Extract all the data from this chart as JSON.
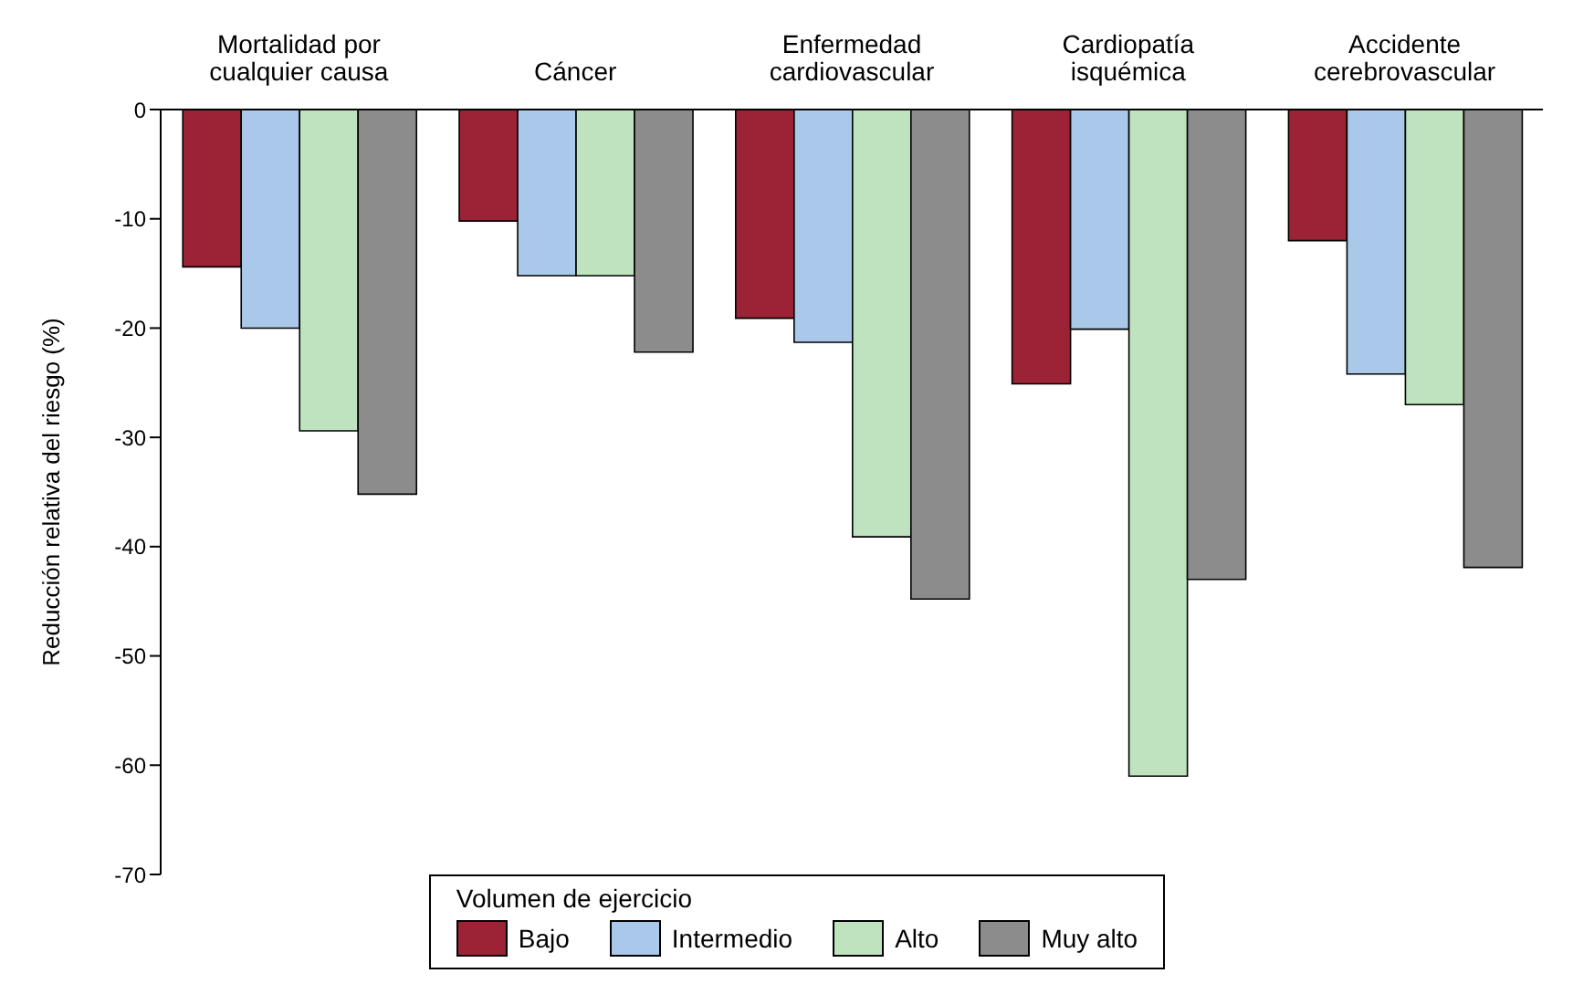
{
  "chart_data": {
    "type": "bar",
    "ylabel": "Reducción relativa del riesgo (%)",
    "legend_title": "Volumen de ejercicio",
    "legend": "bottom",
    "categories": [
      "Mortalidad por cualquier causa",
      "Cáncer",
      "Enfermedad cardiovascular",
      "Cardiopatía isquémica",
      "Accidente cerebrovascular"
    ],
    "series": [
      {
        "name": "Bajo",
        "color": "#9b2335",
        "values": [
          -14.4,
          -10.2,
          -19.1,
          -25.1,
          -12
        ]
      },
      {
        "name": "Intermedio",
        "color": "#a9c8ea",
        "values": [
          -20,
          -15.2,
          -21.3,
          -20.1,
          -24.2
        ]
      },
      {
        "name": "Alto",
        "color": "#bfe3bf",
        "values": [
          -29.4,
          -15.2,
          -39.1,
          -61,
          -27
        ]
      },
      {
        "name": "Muy alto",
        "color": "#8c8c8c",
        "values": [
          -35.2,
          -22.2,
          -44.8,
          -43,
          -41.9
        ]
      }
    ],
    "ylim": [
      -70,
      0
    ],
    "yticks": [
      0,
      -10,
      -20,
      -30,
      -40,
      -50,
      -60,
      -70
    ]
  }
}
